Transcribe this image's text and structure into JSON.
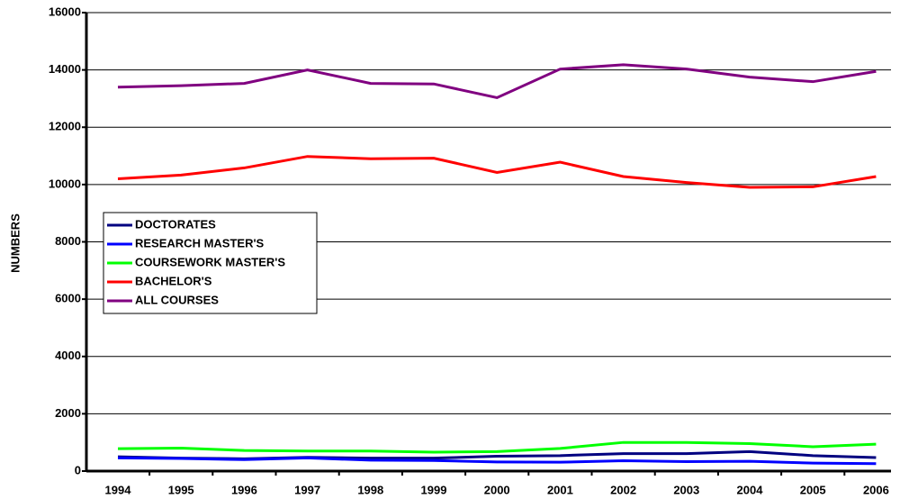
{
  "chart_data": {
    "type": "line",
    "y_axis_label": "NUMBERS",
    "categories": [
      "1994",
      "1995",
      "1996",
      "1997",
      "1998",
      "1999",
      "2000",
      "2001",
      "2002",
      "2003",
      "2004",
      "2005",
      "2006"
    ],
    "series": [
      {
        "name": "DOCTORATES",
        "color": "#000080",
        "values": [
          500,
          450,
          430,
          480,
          450,
          450,
          520,
          540,
          610,
          610,
          680,
          540,
          470
        ]
      },
      {
        "name": "RESEARCH MASTER'S",
        "color": "#0000ff",
        "values": [
          460,
          440,
          400,
          460,
          380,
          370,
          320,
          310,
          360,
          330,
          340,
          280,
          260
        ]
      },
      {
        "name": "COURSEWORK MASTER'S",
        "color": "#00ff00",
        "values": [
          780,
          800,
          720,
          700,
          700,
          660,
          680,
          790,
          1000,
          1000,
          960,
          850,
          940
        ]
      },
      {
        "name": "BACHELOR'S",
        "color": "#ff0000",
        "values": [
          10200,
          10330,
          10580,
          10980,
          10900,
          10920,
          10420,
          10780,
          10280,
          10070,
          9900,
          9920,
          10280
        ]
      },
      {
        "name": "ALL COURSES",
        "color": "#800080",
        "values": [
          13400,
          13450,
          13530,
          14000,
          13530,
          13510,
          13030,
          14030,
          14180,
          14030,
          13750,
          13590,
          13950
        ]
      }
    ],
    "ylim": [
      0,
      16000
    ],
    "yticks": [
      0,
      2000,
      4000,
      6000,
      8000,
      10000,
      12000,
      14000,
      16000
    ],
    "grid": true,
    "legend": "left"
  }
}
